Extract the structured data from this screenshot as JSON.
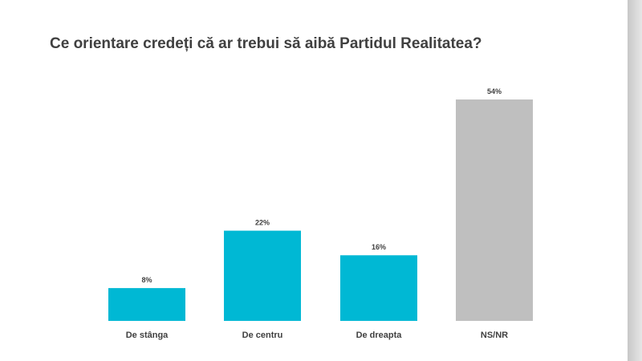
{
  "title": "Ce orientare credeți că ar trebui să aibă Partidul Realitatea?",
  "chart_data": {
    "type": "bar",
    "title": "Ce orientare credeți că ar trebui să aibă Partidul Realitatea?",
    "categories": [
      "De stânga",
      "De centru",
      "De dreapta",
      "NS/NR"
    ],
    "values": [
      8,
      22,
      16,
      54
    ],
    "value_labels": [
      "8%",
      "22%",
      "16%",
      "54%"
    ],
    "colors": [
      "#00b8d4",
      "#00b8d4",
      "#00b8d4",
      "#bfbfbf"
    ],
    "ylim": [
      0,
      54
    ],
    "grid": false,
    "legend": "none"
  }
}
